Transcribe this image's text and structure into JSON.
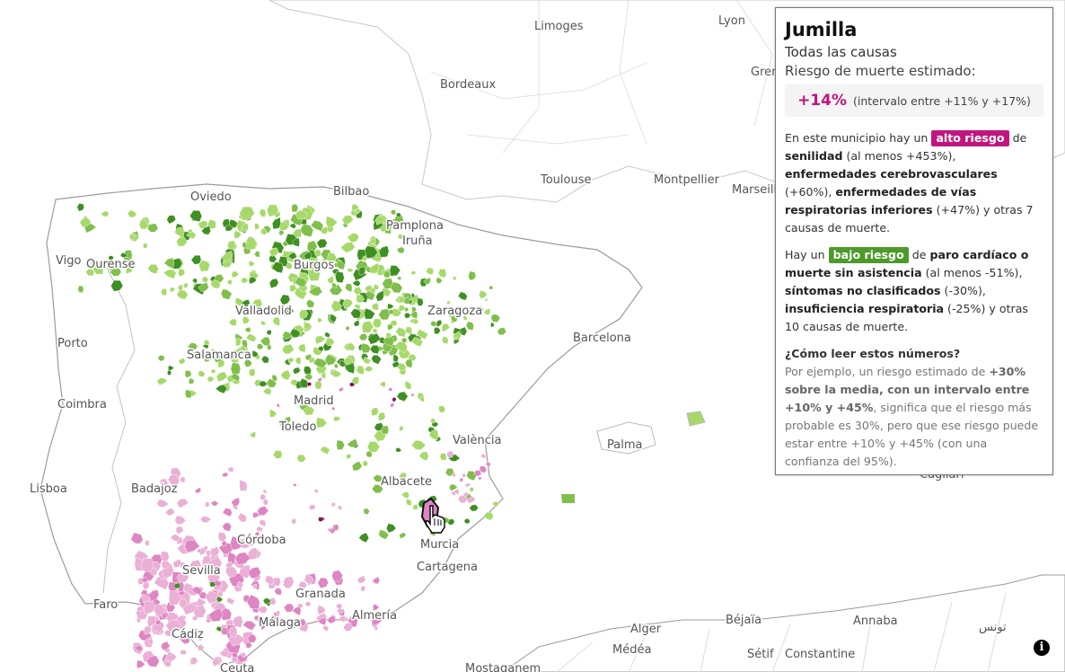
{
  "colors": {
    "high_risk": "#c0157f",
    "low_risk": "#4d9a2a",
    "green_light": "#a6d96a",
    "green_mid": "#7fbf4a",
    "green_dark": "#3f8f23",
    "pink_light": "#eab0d6",
    "pink_mid": "#de85c3",
    "pink_dark": "#8b0e52"
  },
  "map": {
    "cities": [
      "Limoges",
      "Lyon",
      "Bordeaux",
      "Toulouse",
      "Montpellier",
      "Marseille",
      "Oviedo",
      "Bilbao",
      "Pamplona",
      "Iruña",
      "Vigo",
      "Ourense",
      "Burgos",
      "Valladolid",
      "Zaragoza",
      "Barcelona",
      "Porto",
      "Salamanca",
      "Madrid",
      "Coimbra",
      "Toledo",
      "València",
      "Palma",
      "Lisboa",
      "Badajoz",
      "Albacete",
      "Córdoba",
      "Murcia",
      "Cartagena",
      "Sevilla",
      "Granada",
      "Faro",
      "Almería",
      "Málaga",
      "Cádiz",
      "Alger",
      "Béjaïa",
      "Annaba",
      "تونس",
      "Médéa",
      "Sétif",
      "Constantine",
      "Mostaganem",
      "Ceuta",
      "Grenoble",
      "Cagliari"
    ]
  },
  "panel": {
    "municipality": "Jumilla",
    "cause": "Todas las causas",
    "risk_label": "Riesgo de muerte estimado:",
    "risk_value": "+14%",
    "risk_interval": "(intervalo entre +11% y +17%)",
    "high": {
      "prefix": "En este municipio hay un",
      "tag": "alto riesgo",
      "de": "de",
      "c1": "senilidad",
      "c1_val": "(al menos +453%),",
      "c2": "enfermedades cerebrovasculares",
      "c2_val": "(+60%),",
      "c3": "enfermedades de vías respiratorias inferiores",
      "c3_val": "(+47%) y otras 7 causas de muerte."
    },
    "low": {
      "prefix": "Hay un",
      "tag": "bajo riesgo",
      "de": "de",
      "c1": "paro cardíaco o muerte sin asistencia",
      "c1_val": "(al menos -51%),",
      "c2": "síntomas no clasificados",
      "c2_val": "(-30%),",
      "c3": "insuficiencia respiratoria",
      "c3_val": "(-25%) y otras 10 causas de muerte."
    },
    "howto": {
      "question": "¿Cómo leer estos números?",
      "t1": "Por ejemplo, un riesgo estimado de",
      "b1": "+30% sobre la media, con un intervalo entre +10% y +45%",
      "t2": ", significa que el riesgo más probable es 30%, pero que ese riesgo puede estar entre +10% y +45% (con una confianza del 95%)."
    }
  },
  "info_icon": "info-icon",
  "cursor_icon": "hand-pointer-icon"
}
